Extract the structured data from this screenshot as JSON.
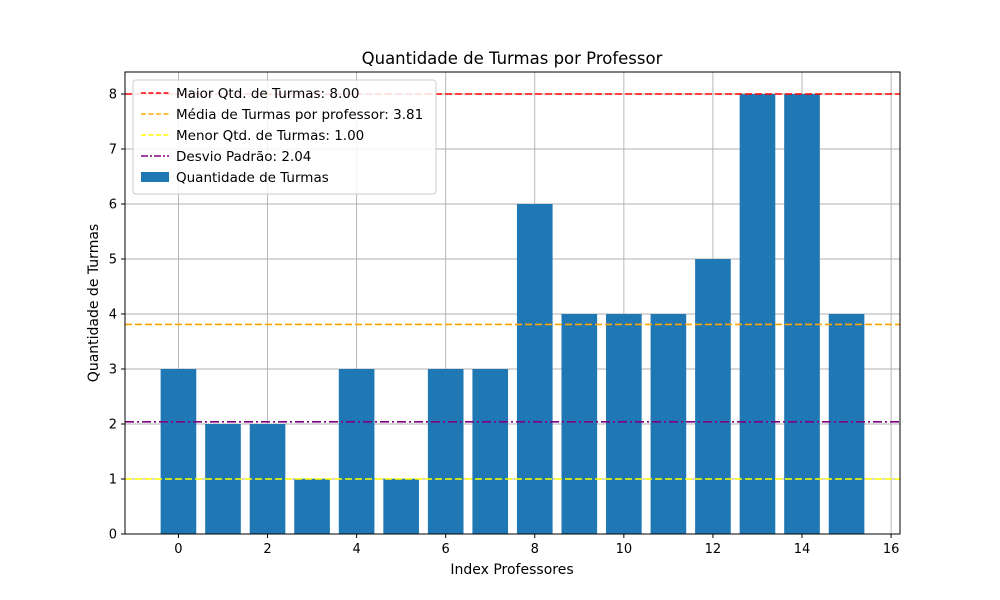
{
  "chart_data": {
    "type": "bar",
    "title": "Quantidade de Turmas por Professor",
    "xlabel": "Index Professores",
    "ylabel": "Quantidade de Turmas",
    "x": [
      0,
      1,
      2,
      3,
      4,
      5,
      6,
      7,
      8,
      9,
      10,
      11,
      12,
      13,
      14,
      15
    ],
    "values": [
      3,
      2,
      2,
      1,
      3,
      1,
      3,
      3,
      6,
      4,
      4,
      4,
      5,
      8,
      8,
      4
    ],
    "xlim": [
      -1.2,
      16.2
    ],
    "ylim": [
      0,
      8.4
    ],
    "xticks": [
      0,
      2,
      4,
      6,
      8,
      10,
      12,
      14,
      16
    ],
    "yticks": [
      0,
      1,
      2,
      3,
      4,
      5,
      6,
      7,
      8
    ],
    "grid": true,
    "bar_color": "#1f77b4",
    "series": [
      {
        "name": "Quantidade de Turmas",
        "kind": "bar"
      }
    ],
    "reference_lines": [
      {
        "name": "Maior Qtd. de Turmas: 8.00",
        "value": 8.0,
        "color": "#ff0000",
        "style": "dashed"
      },
      {
        "name": "Média de Turmas por professor: 3.81",
        "value": 3.81,
        "color": "#ffa500",
        "style": "dashed"
      },
      {
        "name": "Menor Qtd. de Turmas: 1.00",
        "value": 1.0,
        "color": "#ffff00",
        "style": "dashed"
      },
      {
        "name": "Desvio Padrão: 2.04",
        "value": 2.04,
        "color": "#800080",
        "style": "dashdot"
      }
    ],
    "legend_position": "top-left"
  }
}
